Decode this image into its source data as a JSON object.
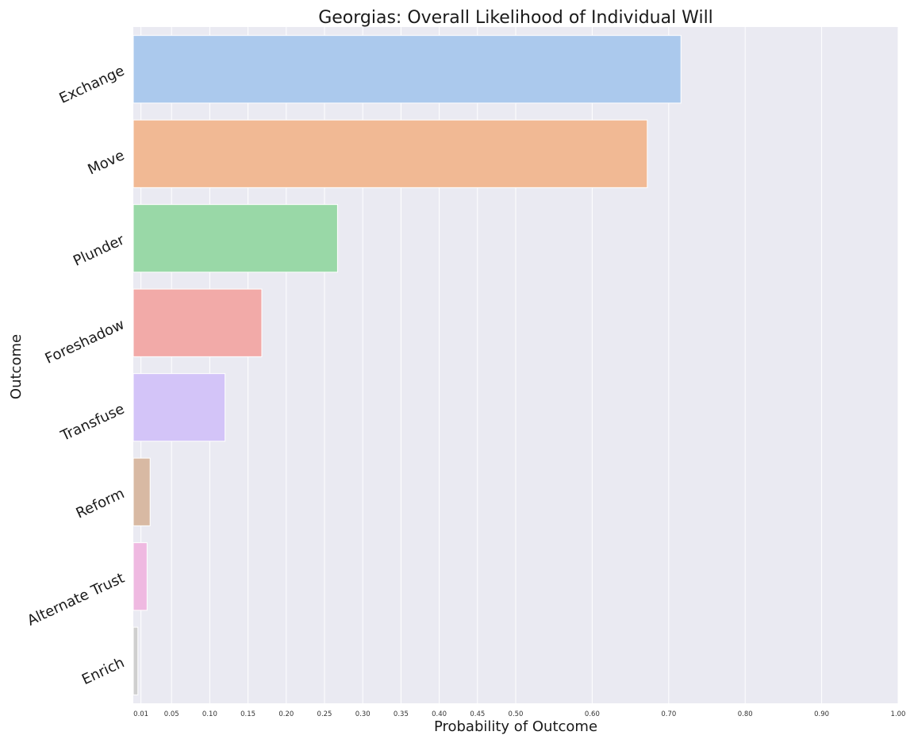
{
  "chart_data": {
    "type": "bar",
    "orientation": "horizontal",
    "title": "Georgias: Overall Likelihood of Individual Will",
    "xlabel": "Probability of Outcome",
    "ylabel": "Outcome",
    "xlim": [
      0,
      1.0
    ],
    "x_ticks": [
      0.01,
      0.05,
      0.1,
      0.15,
      0.2,
      0.25,
      0.3,
      0.35,
      0.4,
      0.45,
      0.5,
      0.6,
      0.7,
      0.8,
      0.9,
      1.0
    ],
    "x_tick_labels": [
      "0.01",
      "0.05",
      "0.10",
      "0.15",
      "0.20",
      "0.25",
      "0.30",
      "0.35",
      "0.40",
      "0.45",
      "0.50",
      "0.60",
      "0.70",
      "0.80",
      "0.90",
      "1.00"
    ],
    "categories": [
      "Exchange",
      "Move",
      "Plunder",
      "Foreshadow",
      "Transfuse",
      "Reform",
      "Alternate Trust",
      "Enrich"
    ],
    "values": [
      0.716,
      0.672,
      0.267,
      0.168,
      0.12,
      0.022,
      0.018,
      0.006
    ],
    "colors": [
      "#abc9ed",
      "#f1b994",
      "#99d8a7",
      "#f2aaa8",
      "#d3c4f8",
      "#d8b9a3",
      "#efb9e1",
      "#cfcfcf"
    ],
    "grid": true,
    "background": "#eaeaf2"
  }
}
